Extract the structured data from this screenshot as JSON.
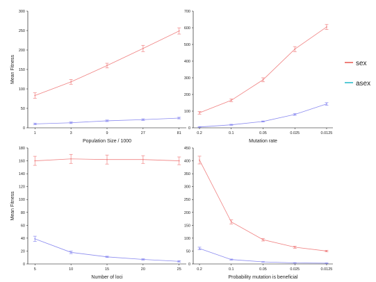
{
  "colors": {
    "sex": "#f08080",
    "asex": "#8a8af0",
    "legend_sex": "#e8554e",
    "legend_asex": "#1fb8c8",
    "axis": "#000000"
  },
  "legend": [
    {
      "key": "sex",
      "label": "sex"
    },
    {
      "key": "asex",
      "label": "asex"
    }
  ],
  "chart_data": [
    {
      "type": "line",
      "xlabel": "Population Size / 1000",
      "ylabel": "Mean Fitness",
      "categories": [
        "1",
        "3",
        "9",
        "27",
        "81"
      ],
      "ylim": [
        0,
        300
      ],
      "yticks": [
        0,
        50,
        100,
        150,
        200,
        250,
        300
      ],
      "series": [
        {
          "key": "sex",
          "values": [
            83,
            118,
            160,
            204,
            249
          ],
          "err": [
            7,
            6,
            6,
            8,
            8
          ]
        },
        {
          "key": "asex",
          "values": [
            10,
            13,
            18,
            21,
            25
          ],
          "err": [
            2,
            2,
            2,
            2,
            2
          ]
        }
      ]
    },
    {
      "type": "line",
      "xlabel": "Mutation rate",
      "ylabel": "",
      "categories": [
        "0.2",
        "0.1",
        "0.05",
        "0.025",
        "0.0125"
      ],
      "ylim": [
        0,
        700
      ],
      "yticks": [
        0,
        100,
        200,
        300,
        400,
        500,
        600,
        700
      ],
      "series": [
        {
          "key": "sex",
          "values": [
            90,
            165,
            288,
            472,
            605
          ],
          "err": [
            8,
            8,
            12,
            15,
            15
          ]
        },
        {
          "key": "asex",
          "values": [
            5,
            18,
            38,
            80,
            143
          ],
          "err": [
            2,
            3,
            3,
            5,
            8
          ]
        }
      ]
    },
    {
      "type": "line",
      "xlabel": "Number of loci",
      "ylabel": "Mean Fitness",
      "categories": [
        "5",
        "10",
        "15",
        "20",
        "25"
      ],
      "ylim": [
        0,
        180
      ],
      "yticks": [
        0,
        20,
        40,
        60,
        80,
        100,
        120,
        140,
        160,
        180
      ],
      "series": [
        {
          "key": "sex",
          "values": [
            160,
            163,
            162,
            162,
            160
          ],
          "err": [
            7,
            7,
            7,
            6,
            6
          ]
        },
        {
          "key": "asex",
          "values": [
            39,
            18,
            11,
            7,
            4
          ],
          "err": [
            4,
            2,
            1,
            1,
            1
          ]
        }
      ]
    },
    {
      "type": "line",
      "xlabel": "Probability mutation is beneficial",
      "ylabel": "",
      "categories": [
        "0.2",
        "0.1",
        "0.05",
        "0.025",
        "0.0125"
      ],
      "ylim": [
        0,
        450
      ],
      "yticks": [
        0,
        50,
        100,
        150,
        200,
        250,
        300,
        350,
        400,
        450
      ],
      "series": [
        {
          "key": "sex",
          "values": [
            403,
            163,
            94,
            65,
            50
          ],
          "err": [
            15,
            8,
            5,
            4,
            3
          ]
        },
        {
          "key": "asex",
          "values": [
            60,
            17,
            8,
            4,
            3
          ],
          "err": [
            5,
            2,
            1,
            1,
            1
          ]
        }
      ]
    }
  ]
}
